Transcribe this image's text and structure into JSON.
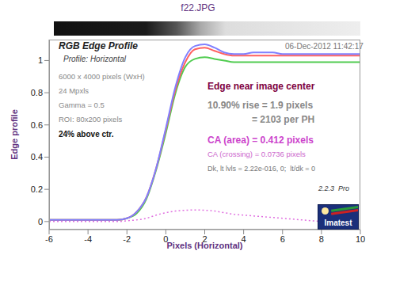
{
  "chart_data": {
    "type": "line",
    "title": "f22.JPG",
    "x_label": "Pixels (Horizontal)",
    "y_label": "Edge profile",
    "x": [
      -6,
      -5.5,
      -5,
      -4.5,
      -4,
      -3.5,
      -3,
      -2.5,
      -2,
      -1.5,
      -1,
      -0.5,
      0,
      0.5,
      1,
      1.5,
      2,
      2.5,
      3,
      3.5,
      4,
      4.5,
      5,
      5.5,
      6,
      6.5,
      7,
      7.5,
      8,
      8.5,
      9,
      9.5,
      10
    ],
    "series": [
      {
        "color": "#e070e0",
        "line_style": "dotted",
        "values": [
          0,
          0,
          0,
          0,
          0,
          0,
          0,
          0,
          0.005,
          0.01,
          0.02,
          0.04,
          0.055,
          0.065,
          0.07,
          0.072,
          0.07,
          0.065,
          0.055,
          0.045,
          0.04,
          0.035,
          0.03,
          0.025,
          0.02,
          0.015,
          0.01,
          0.005,
          0,
          -0.005,
          -0.005,
          -0.01,
          -0.01
        ]
      },
      {
        "color": "#50cc50",
        "line_style": "solid",
        "values": [
          0.01,
          0.01,
          0.01,
          0.01,
          0.01,
          0.01,
          0.01,
          0.01,
          0.02,
          0.05,
          0.14,
          0.32,
          0.55,
          0.8,
          0.96,
          1.01,
          1.02,
          1.01,
          1.0,
          0.99,
          0.99,
          0.99,
          0.99,
          0.99,
          0.99,
          0.99,
          0.99,
          0.99,
          0.99,
          0.99,
          0.99,
          0.99,
          0.99
        ]
      },
      {
        "color": "#ff6060",
        "line_style": "solid",
        "values": [
          0.01,
          0.01,
          0.01,
          0.01,
          0.01,
          0.01,
          0.01,
          0.01,
          0.02,
          0.06,
          0.15,
          0.33,
          0.57,
          0.82,
          0.99,
          1.07,
          1.08,
          1.06,
          1.04,
          1.03,
          1.03,
          1.03,
          1.03,
          1.03,
          1.03,
          1.03,
          1.03,
          1.03,
          1.03,
          1.03,
          1.03,
          1.03,
          1.03
        ]
      },
      {
        "color": "#8080ff",
        "line_style": "solid",
        "values": [
          0.01,
          0.01,
          0.01,
          0.01,
          0.01,
          0.01,
          0.01,
          0.01,
          0.02,
          0.06,
          0.15,
          0.33,
          0.58,
          0.84,
          1.02,
          1.09,
          1.1,
          1.08,
          1.05,
          1.04,
          1.04,
          1.05,
          1.05,
          1.05,
          1.04,
          1.04,
          1.04,
          1.04,
          1.04,
          1.04,
          1.04,
          1.04,
          1.04
        ]
      }
    ],
    "xlim": [
      -6,
      10
    ],
    "xticks": [
      -6,
      -4,
      -2,
      0,
      2,
      4,
      6,
      8,
      10
    ],
    "ylim": [
      -0.05,
      1.13
    ],
    "yticks": [
      0,
      0.2,
      0.4,
      0.6,
      0.8,
      1
    ],
    "grid": false,
    "annotations": [
      "RGB Edge Profile",
      "Profile: Horizontal",
      "06-Dec-2012 11:42:17",
      "6000 x 4000 pixels (WxH)",
      "24 Mpxls",
      "Gamma = 0.5",
      "ROI: 80x200 pixels",
      "24% above ctr.",
      "Edge near image center",
      "10.90% rise = 1.9 pixels",
      "= 2103 per PH",
      "CA (area) = 0.412 pixels",
      "CA (crossing) = 0.0736 pixels",
      "Dk, lt lvls = 2.22e-016, 0;  lt/dk = 0",
      "2.2.3  Pro"
    ],
    "logo": "Imatest"
  }
}
